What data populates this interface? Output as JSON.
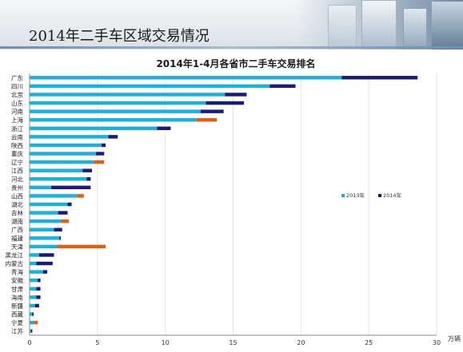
{
  "slide_title": "2014年二手车区域交易情况",
  "colors": {
    "series_2013": "#1ab0e0",
    "series_2014": "#1a1a7a",
    "series_2014_alt": "#e06010",
    "grid": "#e6e6e6",
    "axis": "#888888"
  },
  "chart_data": {
    "type": "bar",
    "orientation": "horizontal",
    "stacked": true,
    "title": "2014年1-4月各省市二手车交易排名",
    "xlabel": "万辆",
    "ylabel": "",
    "xlim": [
      0,
      30
    ],
    "xticks": [
      0,
      5,
      10,
      15,
      20,
      25,
      30
    ],
    "grid": true,
    "legend_position": "right-middle",
    "categories": [
      "广东",
      "四川",
      "北京",
      "山东",
      "河南",
      "上海",
      "浙江",
      "云南",
      "陕西",
      "重庆",
      "辽宁",
      "江西",
      "河北",
      "贵州",
      "山西",
      "湖北",
      "吉林",
      "湖南",
      "广西",
      "福建",
      "天津",
      "黑龙江",
      "内蒙古",
      "青海",
      "安徽",
      "甘肃",
      "海南",
      "新疆",
      "西藏",
      "宁夏",
      "江苏"
    ],
    "series": [
      {
        "name": "2013年",
        "values": [
          23.0,
          17.7,
          14.4,
          13.0,
          12.6,
          12.3,
          9.4,
          5.8,
          5.3,
          4.9,
          4.7,
          3.9,
          4.2,
          1.6,
          3.5,
          2.8,
          2.1,
          2.3,
          1.8,
          2.2,
          2.0,
          0.7,
          0.5,
          1.0,
          0.6,
          0.5,
          0.5,
          0.4,
          0.2,
          0.3,
          0.1
        ]
      },
      {
        "name": "2014年",
        "values": [
          5.6,
          1.9,
          1.6,
          2.8,
          1.7,
          1.5,
          1.0,
          0.7,
          0.3,
          0.6,
          0.8,
          0.7,
          0.3,
          2.9,
          0.5,
          0.3,
          0.7,
          0.6,
          0.6,
          0.1,
          3.6,
          1.1,
          1.2,
          0.3,
          0.2,
          0.3,
          0.3,
          0.3,
          0.1,
          0.3,
          0.1
        ],
        "highlight_categories": [
          "上海",
          "辽宁",
          "山西",
          "湖南",
          "天津",
          "宁夏"
        ]
      }
    ]
  }
}
